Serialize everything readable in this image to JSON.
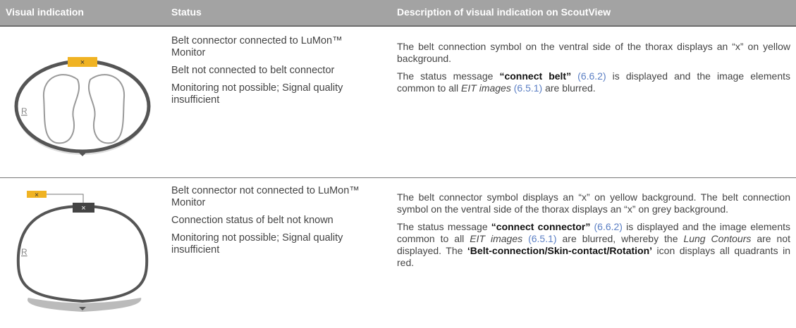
{
  "table": {
    "headers": [
      "Visual indication",
      "Status",
      "Description of visual indication on ScoutView"
    ],
    "rows": [
      {
        "image": {
          "side_label": "R",
          "connector_mark": "×"
        },
        "status": [
          "Belt connector connected to LuMon™ Monitor",
          "Belt not connected to belt connector",
          "Monitoring not possible; Signal quality insufficient"
        ],
        "description": [
          [
            {
              "text": "The belt connection symbol on the ventral side of the thorax displays an “x” on yellow background."
            }
          ],
          [
            {
              "text": "The status message "
            },
            {
              "bold": "“connect belt” "
            },
            {
              "link": "(6.6.2)"
            },
            {
              "text": " is displayed and the image elements common to all "
            },
            {
              "italic": "EIT images "
            },
            {
              "link": "(6.5.1)"
            },
            {
              "text": " are blurred."
            }
          ]
        ]
      },
      {
        "image": {
          "side_label": "R",
          "connector_mark": "×",
          "belt_mark": "×"
        },
        "status": [
          "Belt connector not connected to LuMon™ Monitor",
          "Connection status of belt not known",
          "Monitoring not possible; Signal quality insufficient"
        ],
        "description": [
          [
            {
              "text": "The belt connector symbol displays an “x” on yellow background. The belt connection symbol on the ventral side of the thorax displays an “x” on grey background."
            }
          ],
          [
            {
              "text": "The status message "
            },
            {
              "bold": "“connect connector” "
            },
            {
              "link": "(6.6.2)"
            },
            {
              "text": " is displayed and the image elements common to all "
            },
            {
              "italic": "EIT images "
            },
            {
              "link": "(6.5.1)"
            },
            {
              "text": " are blurred, whereby the "
            },
            {
              "italic": "Lung Contours"
            },
            {
              "text": " are not displayed. The "
            },
            {
              "bold": "‘Belt-connection/Skin-contact/Rotation’"
            },
            {
              "text": " icon displays all quadrants in red."
            }
          ]
        ]
      }
    ]
  }
}
